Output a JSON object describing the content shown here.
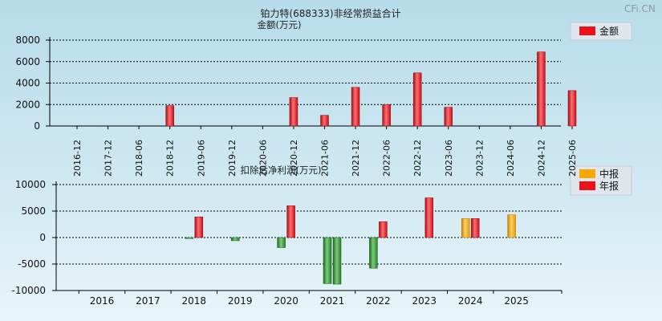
{
  "brand": "CFi.CN",
  "chart_data": [
    {
      "type": "bar",
      "title": "铂力特(688333)非经常损益合计",
      "ylabel": "金额(万元)",
      "legend": [
        "金额"
      ],
      "legend_position": "top-right",
      "colors": {
        "bar": "#e8141c",
        "bar_edge": "#8e0c10"
      },
      "ylim": [
        0,
        8000
      ],
      "yticks": [
        0,
        2000,
        4000,
        6000,
        8000
      ],
      "grid": true,
      "categories": [
        "2016-12",
        "2017-12",
        "2018-06",
        "2018-12",
        "2019-06",
        "2019-12",
        "2020-06",
        "2020-12",
        "2021-06",
        "2021-12",
        "2022-06",
        "2022-12",
        "2023-06",
        "2023-12",
        "2024-06",
        "2024-12",
        "2025-06"
      ],
      "values": [
        0,
        0,
        0,
        1900,
        0,
        0,
        0,
        2650,
        1000,
        3600,
        2000,
        4950,
        1750,
        0,
        0,
        6900,
        3300
      ]
    },
    {
      "type": "bar",
      "ylabel": "扣除后净利润(万元)",
      "legend": [
        "中报",
        "年报"
      ],
      "legend_position": "top-right",
      "colors": {
        "interim": "#f5a800",
        "annual": "#e8141c",
        "negative": "#2e8b2e"
      },
      "ylim": [
        -10000,
        10000
      ],
      "yticks": [
        -10000,
        -5000,
        0,
        5000,
        10000
      ],
      "grid": true,
      "categories": [
        "2016",
        "2017",
        "2018",
        "2019",
        "2020",
        "2021",
        "2022",
        "2023",
        "2024",
        "2025"
      ],
      "series": [
        {
          "name": "中报",
          "values": [
            null,
            null,
            -200,
            -600,
            -1900,
            -8700,
            -5800,
            null,
            3600,
            4300
          ]
        },
        {
          "name": "年报",
          "values": [
            null,
            null,
            3900,
            null,
            6000,
            -8800,
            3000,
            7500,
            3600,
            null
          ]
        }
      ]
    }
  ]
}
